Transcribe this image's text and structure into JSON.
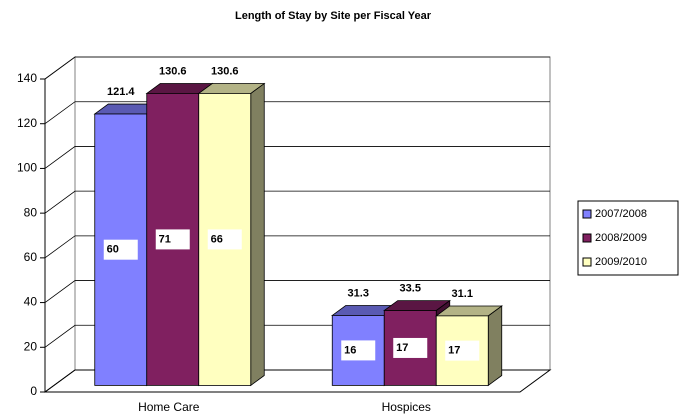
{
  "chart_data": {
    "type": "bar3d",
    "title": "Length of Stay by Site per Fiscal Year",
    "categories": [
      "Home Care",
      "Hospices"
    ],
    "series": [
      {
        "name": "2007/2008",
        "color": "#8080ff",
        "values": [
          121.4,
          31.3
        ],
        "inner_values": [
          60,
          16
        ]
      },
      {
        "name": "2008/2009",
        "color": "#802060",
        "values": [
          130.6,
          33.5
        ],
        "inner_values": [
          71,
          17
        ]
      },
      {
        "name": "2009/2010",
        "color": "#ffffc0",
        "values": [
          130.6,
          31.1
        ],
        "inner_values": [
          66,
          17
        ]
      }
    ],
    "ylim": [
      0,
      140
    ],
    "yticks": [
      0,
      20,
      40,
      60,
      80,
      100,
      120,
      140
    ],
    "grid": true,
    "legend": "right"
  }
}
